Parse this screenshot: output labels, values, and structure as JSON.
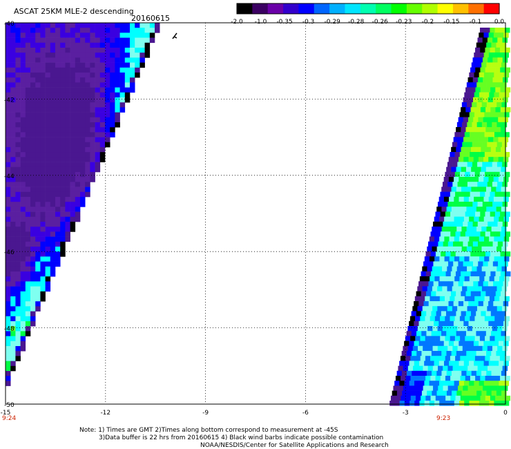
{
  "header": {
    "title": "ASCAT 25KM MLE-2 descending",
    "date": "20160615"
  },
  "colorbar": {
    "labels": [
      "-2.0",
      "-1.0",
      "-0.35",
      "-0.3",
      "-0.29",
      "-0.28",
      "-0.26",
      "-0.23",
      "-0.2",
      "-0.15",
      "-0.1",
      "0.0"
    ],
    "colors": [
      "#000000",
      "#3b0062",
      "#6a00a8",
      "#3300cc",
      "#0000ff",
      "#0066ff",
      "#00b0ff",
      "#00e5ff",
      "#00ffb0",
      "#00ff60",
      "#00ff00",
      "#66ff00",
      "#b0ff00",
      "#ffff00",
      "#ffc000",
      "#ff7000",
      "#ff0000"
    ]
  },
  "map": {
    "lat_labels": [
      "-40",
      "-42",
      "-44",
      "-46",
      "-48",
      "-50"
    ],
    "lon_labels": [
      "-15",
      "-12",
      "-9",
      "-6",
      "-3",
      "0"
    ],
    "lon_range": [
      -15,
      0
    ],
    "lat_range": [
      -50,
      -40
    ],
    "swath_time_left": "9:24",
    "swath_time_right": "9:23"
  },
  "notes": {
    "line1": "Note: 1) Times are GMT 2)Times along bottom correspond to measurement at -45S",
    "line2": "3)Data buffer is 22 hrs from 20160615 4) Black wind barbs indicate possible contamination",
    "line3": "NOAA/NESDIS/Center for Satellite Applications and Research"
  },
  "palette": {
    "grid": "#000000",
    "time_label": "#cc2200",
    "purple": "#5a1fa0",
    "deep_purple": "#4a1790",
    "blue": "#0000ff",
    "cyan": "#00ffff",
    "light_cyan": "#7ffff0",
    "green": "#00ff44",
    "lime": "#66ff22",
    "yellow_green": "#b8ff10"
  }
}
